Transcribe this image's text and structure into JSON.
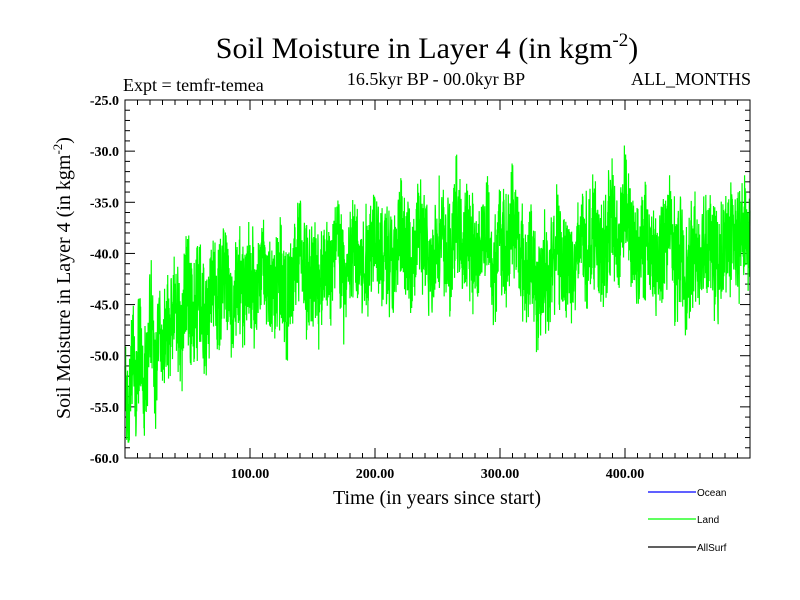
{
  "chart_data": {
    "type": "line",
    "title_main": "Soil Moisture in Layer 4 (in kgm",
    "title_sup": "-2",
    "title_close": ")",
    "subtitle_left": "Expt = temfr-temea",
    "subtitle_center": "16.5kyr BP - 00.0kyr BP",
    "subtitle_right": "ALL_MONTHS",
    "xlabel": "Time (in years since start)",
    "ylabel_main": "Soil Moisture in Layer 4 (in kgm",
    "ylabel_sup": "-2",
    "ylabel_close": ")",
    "xlim": [
      0,
      500
    ],
    "ylim": [
      -60,
      -25
    ],
    "xticks": [
      {
        "value": 100,
        "label": "100.00"
      },
      {
        "value": 200,
        "label": "200.00"
      },
      {
        "value": 300,
        "label": "300.00"
      },
      {
        "value": 400,
        "label": "400.00"
      }
    ],
    "yticks": [
      {
        "value": -25,
        "label": "-25.0"
      },
      {
        "value": -30,
        "label": "-30.0"
      },
      {
        "value": -35,
        "label": "-35.0"
      },
      {
        "value": -40,
        "label": "-40.0"
      },
      {
        "value": -45,
        "label": "-45.0"
      },
      {
        "value": -50,
        "label": "-50.0"
      },
      {
        "value": -55,
        "label": "-55.0"
      },
      {
        "value": -60,
        "label": "-60.0"
      }
    ],
    "legend_position": "bottom-right",
    "series": [
      {
        "name": "Ocean",
        "color": "#0000ff",
        "x": [],
        "y": []
      },
      {
        "name": "Land",
        "color": "#00ff00",
        "x": [
          0,
          3,
          6,
          9,
          12,
          15,
          18,
          21,
          24,
          27,
          30,
          35,
          40,
          45,
          50,
          55,
          60,
          65,
          70,
          75,
          80,
          85,
          90,
          95,
          100,
          105,
          110,
          115,
          120,
          125,
          130,
          135,
          140,
          145,
          150,
          155,
          160,
          165,
          170,
          175,
          180,
          185,
          190,
          195,
          200,
          205,
          210,
          215,
          220,
          225,
          230,
          235,
          240,
          245,
          250,
          255,
          260,
          265,
          270,
          275,
          280,
          285,
          290,
          295,
          300,
          305,
          310,
          315,
          320,
          325,
          330,
          335,
          340,
          345,
          350,
          355,
          360,
          365,
          370,
          375,
          380,
          385,
          390,
          395,
          400,
          405,
          410,
          415,
          420,
          425,
          430,
          435,
          440,
          445,
          450,
          455,
          460,
          465,
          470,
          475,
          480,
          485,
          490,
          495,
          500
        ],
        "y": [
          -52,
          -57,
          -49,
          -54,
          -47,
          -53,
          -50,
          -46,
          -52,
          -48,
          -50,
          -47,
          -45,
          -48,
          -43,
          -46,
          -44,
          -47,
          -42,
          -45,
          -41,
          -46,
          -43,
          -44,
          -42,
          -45,
          -40,
          -44,
          -43,
          -41,
          -46,
          -42,
          -39,
          -43,
          -41,
          -44,
          -40,
          -42,
          -38,
          -43,
          -41,
          -39,
          -42,
          -40,
          -37,
          -41,
          -39,
          -42,
          -38,
          -40,
          -41,
          -37,
          -40,
          -42,
          -38,
          -39,
          -41,
          -36,
          -40,
          -38,
          -41,
          -39,
          -37,
          -42,
          -38,
          -40,
          -36,
          -39,
          -42,
          -40,
          -45,
          -41,
          -43,
          -39,
          -41,
          -40,
          -42,
          -38,
          -40,
          -37,
          -41,
          -39,
          -36,
          -40,
          -34,
          -39,
          -41,
          -38,
          -40,
          -42,
          -39,
          -37,
          -41,
          -40,
          -43,
          -39,
          -41,
          -38,
          -40,
          -42,
          -39,
          -38,
          -40,
          -37,
          -39
        ],
        "min_visible": -58.5,
        "max_visible": -27.8
      },
      {
        "name": "AllSurf",
        "color": "#000000",
        "x": [],
        "y": []
      }
    ]
  }
}
